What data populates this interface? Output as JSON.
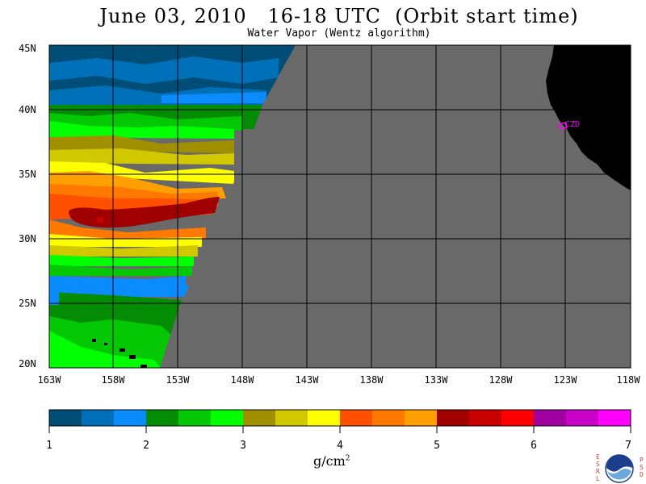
{
  "title": "June 03, 2010   16-18 UTC  (Orbit start time)",
  "subtitle": "Water Vapor (Wentz algorithm)",
  "map": {
    "lon_labels": [
      "163W",
      "158W",
      "153W",
      "148W",
      "143W",
      "138W",
      "133W",
      "128W",
      "123W",
      "118W"
    ],
    "lat_labels": [
      "45N",
      "40N",
      "35N",
      "30N",
      "25N",
      "20N"
    ],
    "lon_range": [
      -163,
      -118
    ],
    "lat_range": [
      20,
      45
    ],
    "station_label": "CZD",
    "nodata_color": "#696969",
    "land_color": "#000000",
    "grid_color": "#000000",
    "station_color": "#ff00ff"
  },
  "colorbar": {
    "ticks": [
      "1",
      "2",
      "3",
      "4",
      "5",
      "6",
      "7"
    ],
    "unit_label": "g/cm",
    "unit_superscript": "2",
    "colors": [
      "#004e78",
      "#0070b8",
      "#0a8cff",
      "#058c05",
      "#05c805",
      "#00ff00",
      "#a09000",
      "#d2c800",
      "#ffff00",
      "#ff5000",
      "#ff7800",
      "#ffa000",
      "#a00000",
      "#c80000",
      "#ff0000",
      "#a000a0",
      "#c800c8",
      "#ff00ff"
    ]
  },
  "logo": {
    "left_letters": "ESRL",
    "right_letters": "PSD",
    "center_text": "NOAA"
  }
}
